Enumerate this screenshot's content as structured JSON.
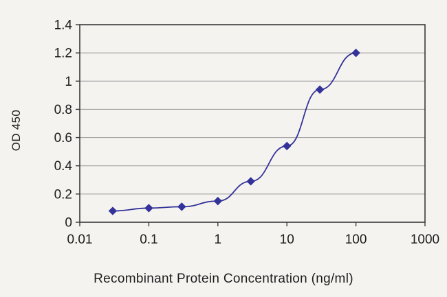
{
  "chart_data": {
    "type": "line",
    "title": "",
    "xlabel": "Recombinant Protein Concentration (ng/ml)",
    "ylabel": "OD 450",
    "x_scale": "log",
    "xlim": [
      0.01,
      1000
    ],
    "ylim": [
      0,
      1.4
    ],
    "x_ticks": [
      0.01,
      0.1,
      1,
      10,
      100,
      1000
    ],
    "x_tick_labels": [
      "0.01",
      "0.1",
      "1",
      "10",
      "100",
      "1000"
    ],
    "y_ticks": [
      0,
      0.2,
      0.4,
      0.6,
      0.8,
      1,
      1.2,
      1.4
    ],
    "y_tick_labels": [
      "0",
      "0.2",
      "0.4",
      "0.6",
      "0.8",
      "1",
      "1.2",
      "1.4"
    ],
    "grid": "horizontal",
    "legend": "none",
    "series": [
      {
        "name": "OD 450",
        "x": [
          0.03,
          0.1,
          0.3,
          1,
          3,
          10,
          30,
          100
        ],
        "y": [
          0.08,
          0.1,
          0.11,
          0.15,
          0.29,
          0.54,
          0.94,
          1.2
        ],
        "color": "#333399",
        "marker": "diamond"
      }
    ],
    "colors": {
      "grid_line": "#9a9a9a",
      "frame": "#3a3a3a",
      "tick_text": "#1c1c1c",
      "background": "#f5f3f0"
    }
  }
}
